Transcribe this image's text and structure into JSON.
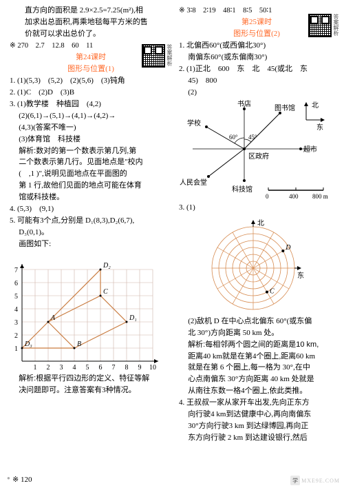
{
  "leftCol": {
    "para1_l1": "直方向的面积是 2.9×2.5=7.25(m²),相",
    "para1_l2": "加求出总面积,再乘地毯每平方米的售",
    "para1_l3": "价就可以求出总价了。",
    "ratio1": "※ 270　2.7　12.8　60　11",
    "lesson24": "第24课时",
    "lesson24_sub": "图形与位置(1)",
    "q1": "1. (1)(5,3)　(5,2)　(2)(5,6)　(3)钝角",
    "q2": "2. (1)C　(2)D　(3)B",
    "q3_head": "3. (1)教学楼　种植园　(4,2)",
    "q3_2a": "(2)(6,1)→(5,1)→(4,1)→(4,2)→",
    "q3_2b": "(4,3)(答案不唯一)",
    "q3_3": "(3)体育馆　科技楼",
    "q3_ex1": "解析:数对的第一个数表示第几列,第",
    "q3_ex2": "二个数表示第几行。见面地点是\"校内",
    "q3_ex3": "(　,1 )\",说明见面地点在平面图的",
    "q3_ex4": "第 1 行,故他们见面的地点可能在体育",
    "q3_ex5": "馆或科技楼。",
    "q4": "4. (5,3)　(9,1)",
    "q5a": "5. 可能有3个点,分别是 D₁(8,3),D₂(6,7),",
    "q5b": "D₃(0,1)。",
    "q5c": "画图如下:",
    "q5_ex1": "解析:根据平行四边形的定义、特征等解",
    "q5_ex2": "决问题即可。注意答案有3种情况。"
  },
  "rightCol": {
    "ratio2": "※ 3∶8　2∶19　48∶1　8∶5　50∶1",
    "lesson25": "第25课时",
    "lesson25_sub": "图形与位置(2)",
    "q1a": "1. 北偏西60°(或西偏北30°)",
    "q1b": "南偏东60°(或东偏南30°)",
    "q2a": "2. (1)正北　600　东　北　45(或北　东",
    "q2b": "45)　800",
    "q2c": "(2)",
    "q3": "3. (1)",
    "q3_2a": "(2)敌机 D 在中心点北偏东 60°(或东偏",
    "q3_2b": "北 30°)方向距离 50 km 处。",
    "q3_ex1": "解析:每相邻两个圆之间的距离是10 km,",
    "q3_ex2": "距离40 km就是在第4个圈上,距离60 km",
    "q3_ex3": "就是在第 6 个圈上,每一格为 30°,在中",
    "q3_ex4": "心点南偏东 30°方向距离 40 km 处就是",
    "q3_ex5": "从南往东数一格4个圈上,依此类推。",
    "q4a": "4. 王叔叔一家从家开车出发,先向正东方",
    "q4b": "向行驶4 km到达健康中心,再向南偏东",
    "q4c": "30°方向行驶3 km 到达绿博园,再向正",
    "q4d": "东方向行驶 2 km 到达建设银行,然后"
  },
  "grid": {
    "x_labels": [
      "1",
      "2",
      "3",
      "4",
      "5",
      "6",
      "7",
      "8",
      "9",
      "10"
    ],
    "y_labels": [
      "1",
      "2",
      "3",
      "4",
      "5",
      "6",
      "7"
    ],
    "points": {
      "A": {
        "x": 2,
        "y": 3,
        "label": "A"
      },
      "B": {
        "x": 4,
        "y": 1,
        "label": "B"
      },
      "C": {
        "x": 6,
        "y": 5,
        "label": "C"
      },
      "D1": {
        "x": 8,
        "y": 3,
        "label": "D₁"
      },
      "D2": {
        "x": 6,
        "y": 7,
        "label": "D₂"
      },
      "D3": {
        "x": 0,
        "y": 1,
        "label": "D₃"
      }
    },
    "grid_color": "#cfb4a8",
    "line_color": "#c97b3f"
  },
  "map": {
    "school": "学校",
    "bookstore": "书店",
    "library": "图书馆",
    "north": "北",
    "east": "东",
    "market": "超市",
    "gov": "区政府",
    "hall": "人民会堂",
    "tech": "科技馆",
    "ang60": "60°",
    "ang45": "45°",
    "scale0": "0",
    "scale4": "400",
    "scale8": "800 m"
  },
  "radar": {
    "north": "北",
    "east": "东",
    "C": "C",
    "D": "D",
    "line_color": "#d68a4f"
  },
  "pageNum": "120",
  "watermark": "MXE9E.COM",
  "qr_label": "答案解析"
}
